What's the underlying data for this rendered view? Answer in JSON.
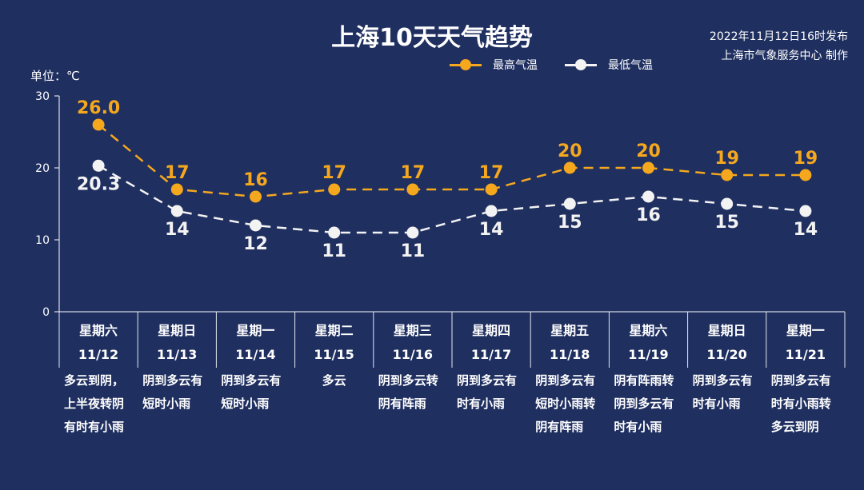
{
  "title": "上海10天天气趋势",
  "publish": {
    "line1": "2022年11月12日16时发布",
    "line2": "上海市气象服务中心 制作"
  },
  "unit_label": "单位：℃",
  "legend": {
    "high_label": "最高气温",
    "low_label": "最低气温"
  },
  "colors": {
    "background": "#1f2f60",
    "high": "#f5a81e",
    "low": "#f3f3f3",
    "axis": "#ffffff",
    "divider": "#e6e6f0"
  },
  "days": [
    {
      "weekday": "星期六",
      "date": "11/12",
      "desc": "多云到阴，\n上半夜转阴\n有时有小雨"
    },
    {
      "weekday": "星期日",
      "date": "11/13",
      "desc": "阴到多云有\n短时小雨"
    },
    {
      "weekday": "星期一",
      "date": "11/14",
      "desc": "阴到多云有\n短时小雨"
    },
    {
      "weekday": "星期二",
      "date": "11/15",
      "desc": "多云"
    },
    {
      "weekday": "星期三",
      "date": "11/16",
      "desc": "阴到多云转\n阴有阵雨"
    },
    {
      "weekday": "星期四",
      "date": "11/17",
      "desc": "阴到多云有\n时有小雨"
    },
    {
      "weekday": "星期五",
      "date": "11/18",
      "desc": "阴到多云有\n短时小雨转\n阴有阵雨"
    },
    {
      "weekday": "星期六",
      "date": "11/19",
      "desc": "阴有阵雨转\n阴到多云有\n时有小雨"
    },
    {
      "weekday": "星期日",
      "date": "11/20",
      "desc": "阴到多云有\n时有小雨"
    },
    {
      "weekday": "星期一",
      "date": "11/21",
      "desc": "阴到多云有\n时有小雨转\n多云到阴"
    }
  ],
  "chart_data": {
    "type": "line",
    "title": "上海10天天气趋势",
    "ylabel": "单位：℃",
    "ylim": [
      0,
      30
    ],
    "yticks": [
      0,
      10,
      20,
      30
    ],
    "categories": [
      "11/12",
      "11/13",
      "11/14",
      "11/15",
      "11/16",
      "11/17",
      "11/18",
      "11/19",
      "11/20",
      "11/21"
    ],
    "series": [
      {
        "name": "最高气温",
        "values": [
          26.0,
          17,
          16,
          17,
          17,
          17,
          20,
          20,
          19,
          19
        ],
        "labels": [
          "26.0",
          "17",
          "16",
          "17",
          "17",
          "17",
          "20",
          "20",
          "19",
          "19"
        ]
      },
      {
        "name": "最低气温",
        "values": [
          20.3,
          14,
          12,
          11,
          11,
          14,
          15,
          16,
          15,
          14
        ],
        "labels": [
          "20.3",
          "14",
          "12",
          "11",
          "11",
          "14",
          "15",
          "16",
          "15",
          "14"
        ]
      }
    ],
    "grid": false,
    "legend_position": "top-right"
  }
}
